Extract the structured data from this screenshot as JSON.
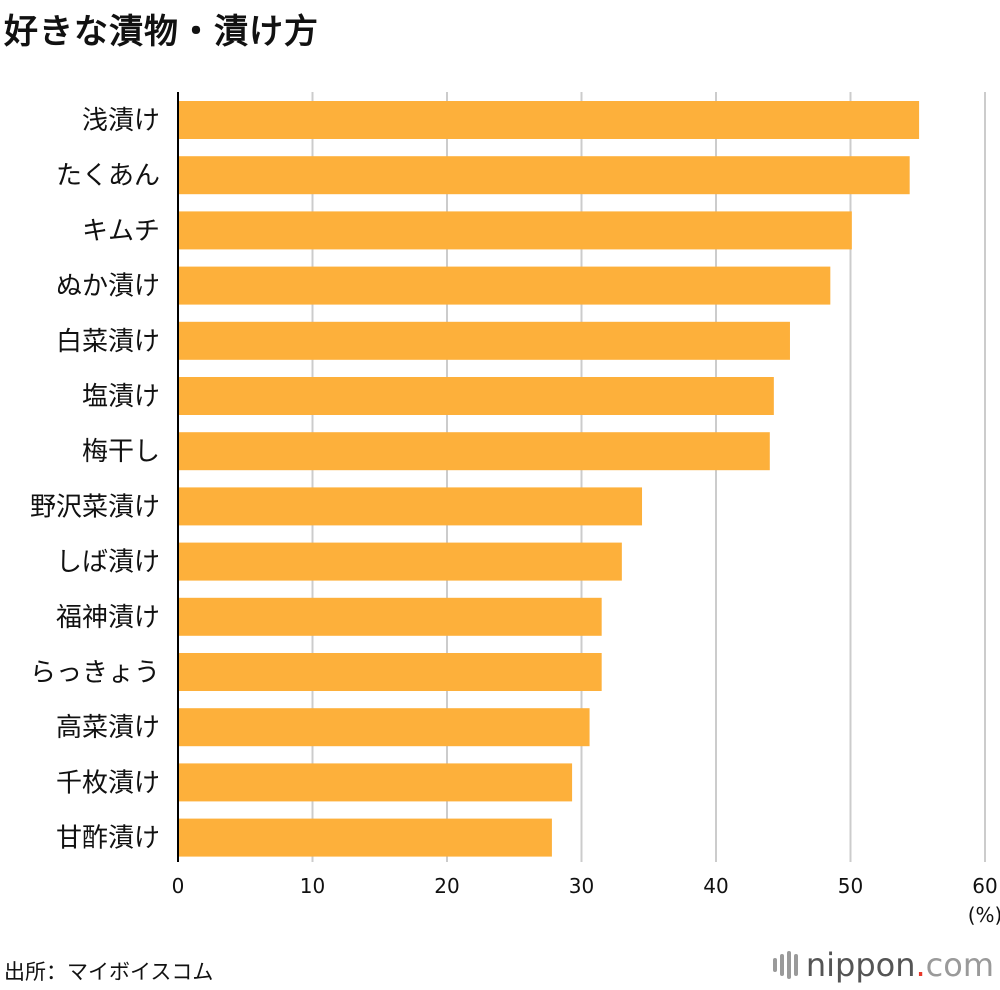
{
  "title": "好きな漬物・漬け方",
  "source": "出所：マイボイスコム",
  "brand": {
    "name": "nippon",
    "dot": ".",
    "tld": "com",
    "colors": {
      "text": "#555555",
      "dot": "#e8382a",
      "tld": "#9a9a9a"
    }
  },
  "colors": {
    "bar": "#fdb03b",
    "grid": "#cccccc",
    "axis": "#000000"
  },
  "chart_data": {
    "type": "bar",
    "orientation": "horizontal",
    "title": "好きな漬物・漬け方",
    "categories": [
      "浅漬け",
      "たくあん",
      "キムチ",
      "ぬか漬け",
      "白菜漬け",
      "塩漬け",
      "梅干し",
      "野沢菜漬け",
      "しば漬け",
      "福神漬け",
      "らっきょう",
      "高菜漬け",
      "千枚漬け",
      "甘酢漬け"
    ],
    "values": [
      55.1,
      54.4,
      50.1,
      48.5,
      45.5,
      44.3,
      44.0,
      34.5,
      33.0,
      31.5,
      31.5,
      30.6,
      29.3,
      27.8
    ],
    "xlim": [
      0,
      60
    ],
    "xticks": [
      0,
      10,
      20,
      30,
      40,
      50,
      60
    ],
    "unit_label": "(%)",
    "xlabel": "",
    "ylabel": "",
    "grid": true
  }
}
